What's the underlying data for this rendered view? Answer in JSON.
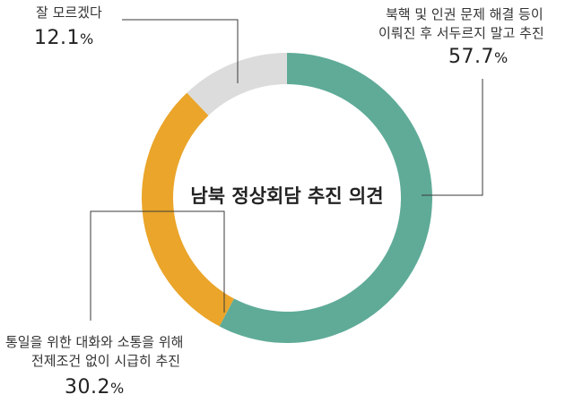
{
  "chart_data": {
    "type": "pie",
    "style": "donut",
    "title": "남북 정상회담 추진 의견",
    "slices": [
      {
        "label_lines": [
          "북핵 및 인권 문제 해결 등이",
          "이뤄진 후 서두르지 말고 추진"
        ],
        "value": 57.7,
        "display": "57.7",
        "color": "#5fab98"
      },
      {
        "label_lines": [
          "통일을 위한 대화와 소통을 위해",
          "전제조건 없이 시급히 추진"
        ],
        "value": 30.2,
        "display": "30.2",
        "color": "#eaa52a"
      },
      {
        "label_lines": [
          "잘 모르겠다"
        ],
        "value": 12.1,
        "display": "12.1",
        "color": "#dcdcdc"
      }
    ],
    "unit": "%",
    "start": "top",
    "direction": "clockwise"
  }
}
